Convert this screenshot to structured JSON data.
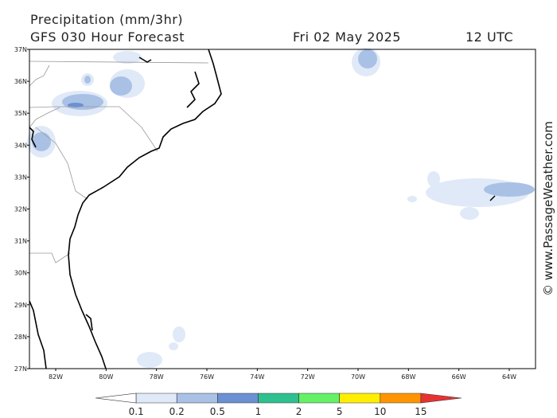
{
  "header": {
    "title": "Precipitation (mm/3hr)",
    "model": "GFS 030 Hour Forecast",
    "date": "Fri 02 May 2025",
    "time": "12 UTC"
  },
  "watermark": "© www.PassageWeather.com",
  "lat_labels": [
    "37N",
    "36N",
    "35N",
    "34N",
    "33N",
    "32N",
    "31N",
    "30N",
    "29N",
    "28N",
    "27N"
  ],
  "lon_labels": [
    "82W",
    "80W",
    "78W",
    "76W",
    "74W",
    "72W",
    "70W",
    "68W",
    "66W",
    "64W"
  ],
  "colorbar": {
    "labels": [
      "0.1",
      "0.2",
      "0.5",
      "1",
      "2",
      "5",
      "10",
      "15"
    ],
    "colors": [
      "#ffffff",
      "#e0e9f7",
      "#a9c1e5",
      "#6b90d3",
      "#2ec08f",
      "#66f066",
      "#ffee00",
      "#ff9400",
      "#e83232"
    ]
  }
}
